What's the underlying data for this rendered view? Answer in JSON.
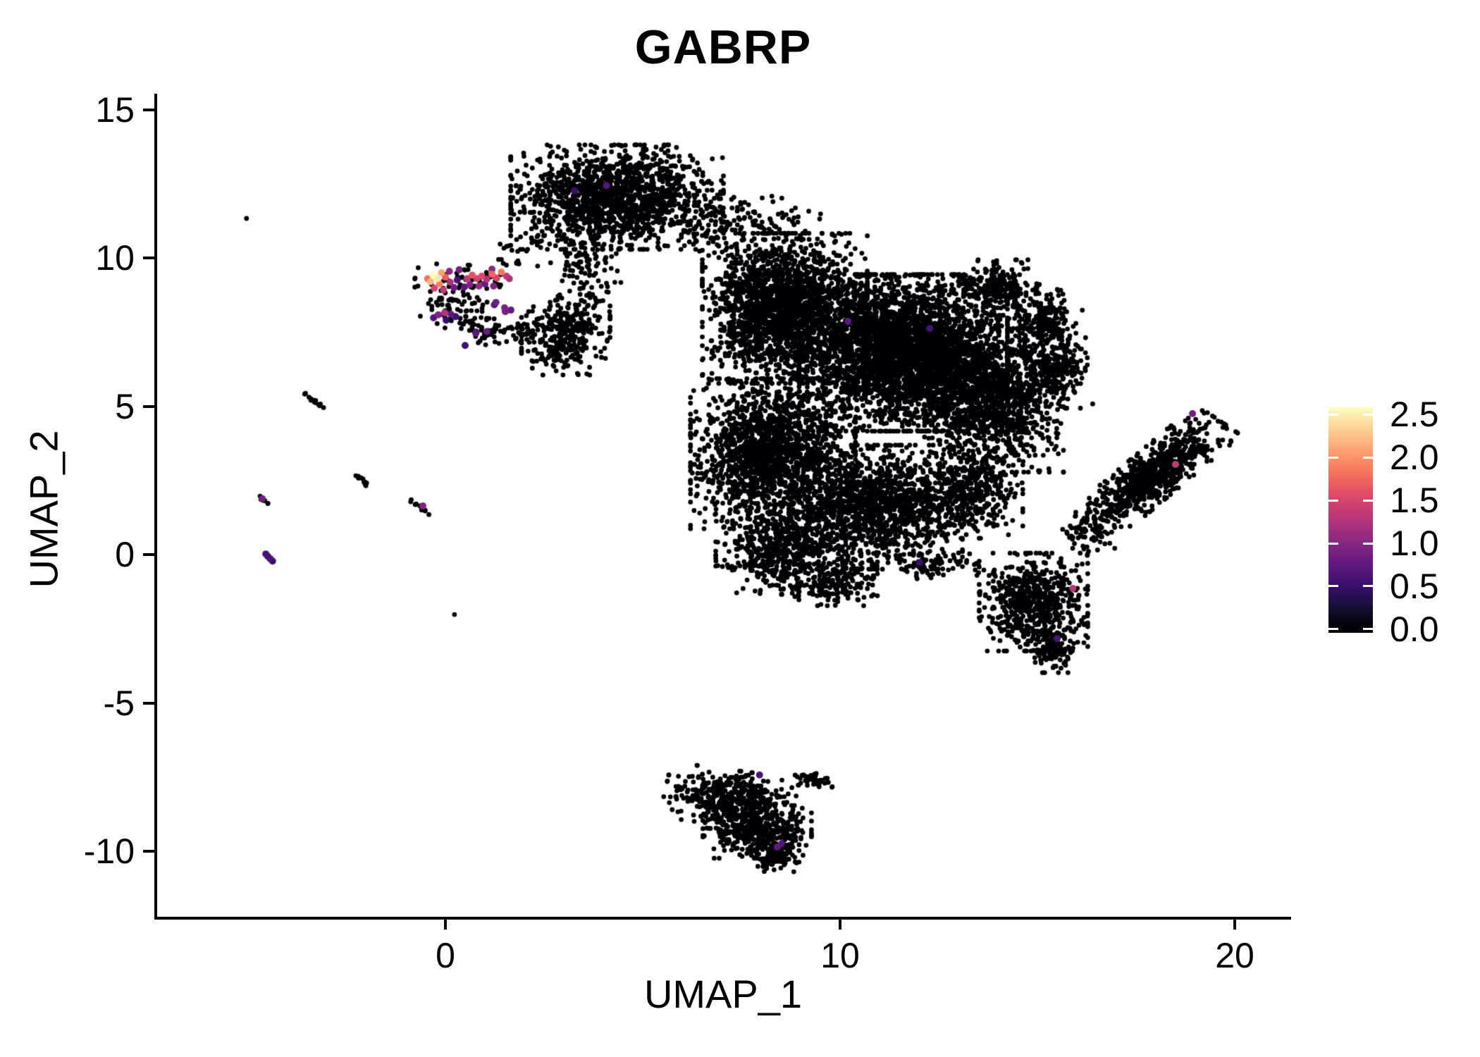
{
  "title": "GABRP",
  "chart_data": {
    "type": "scatter",
    "title": "GABRP",
    "xlabel": "UMAP_1",
    "ylabel": "UMAP_2",
    "xlim": [
      -7.32,
      21.39
    ],
    "ylim": [
      -12.26,
      15.53
    ],
    "grid": false,
    "legend_position": "right",
    "x_tick_values": [
      0,
      10,
      20
    ],
    "x_tick_labels": [
      "0",
      "10",
      "20"
    ],
    "y_tick_values": [
      15,
      10,
      5,
      0,
      -5,
      -10
    ],
    "y_tick_labels": [
      "15",
      "10",
      "5",
      "0",
      "-5",
      "-10"
    ],
    "point_color_zero": "#000004",
    "colorbar": {
      "tick_labels": [
        "2.5",
        "2.0",
        "1.5",
        "1.0",
        "0.5",
        "0.0"
      ],
      "tick_values": [
        2.5,
        2.0,
        1.5,
        1.0,
        0.5,
        0.0
      ],
      "domain": [
        0,
        2.582
      ],
      "bar_value_range": [
        -0.041,
        2.582
      ],
      "palette": "magma",
      "stops": [
        "#000004",
        "#150f34",
        "#3b0f70",
        "#641a80",
        "#8c2981",
        "#b73779",
        "#de4968",
        "#f7705c",
        "#fe9f6d",
        "#fecf92",
        "#fcfdbf"
      ]
    },
    "background_clusters": [
      {
        "name": "top-cluster",
        "cx": 4.35,
        "cy": 12.05,
        "rx": 2.45,
        "ry": 1.6,
        "rot": 0,
        "n": 1500
      },
      {
        "name": "top-cluster-tail",
        "cx": 6.9,
        "cy": 11.0,
        "rx": 0.85,
        "ry": 0.9,
        "rot": -40,
        "n": 80
      },
      {
        "name": "neck-sparse",
        "cx": 3.6,
        "cy": 9.8,
        "rx": 0.85,
        "ry": 1.3,
        "rot": 0,
        "n": 110
      },
      {
        "name": "neck-trail",
        "cx": 2.1,
        "cy": 10.6,
        "rx": 0.9,
        "ry": 0.45,
        "rot": 35,
        "n": 22
      },
      {
        "name": "islet-cluster",
        "cx": 3.05,
        "cy": 7.45,
        "rx": 1.02,
        "ry": 1.27,
        "rot": 0,
        "n": 340
      },
      {
        "name": "gabrp-band-black",
        "cx": 0.6,
        "cy": 9.25,
        "rx": 1.25,
        "ry": 0.5,
        "rot": 0,
        "n": 50
      },
      {
        "name": "gabrp-hook-a",
        "cx": 0.3,
        "cy": 8.3,
        "rx": 0.85,
        "ry": 0.6,
        "rot": 0,
        "n": 65
      },
      {
        "name": "gabrp-hook-b",
        "cx": 1.15,
        "cy": 7.55,
        "rx": 0.75,
        "ry": 0.45,
        "rot": -20,
        "n": 50
      },
      {
        "name": "gabrp-hook-c",
        "cx": 1.95,
        "cy": 7.55,
        "rx": 0.5,
        "ry": 0.35,
        "rot": 0,
        "n": 28
      },
      {
        "name": "gabrp-strays",
        "cx": 1.8,
        "cy": 9.7,
        "rx": 0.75,
        "ry": 0.75,
        "rot": 0,
        "n": 10
      },
      {
        "name": "main-upper-left",
        "cx": 8.6,
        "cy": 8.3,
        "rx": 1.9,
        "ry": 2.3,
        "rot": 0,
        "n": 2100
      },
      {
        "name": "main-core",
        "cx": 11.6,
        "cy": 6.8,
        "rx": 2.4,
        "ry": 2.4,
        "rot": 0,
        "n": 3400
      },
      {
        "name": "main-right",
        "cx": 13.9,
        "cy": 5.2,
        "rx": 1.6,
        "ry": 2.2,
        "rot": 0,
        "n": 1100
      },
      {
        "name": "main-lower-left",
        "cx": 8.3,
        "cy": 3.4,
        "rx": 1.9,
        "ry": 2.3,
        "rot": 0,
        "n": 1700
      },
      {
        "name": "main-lower-mid",
        "cx": 10.9,
        "cy": 1.6,
        "rx": 2.0,
        "ry": 1.9,
        "rot": 0,
        "n": 1300
      },
      {
        "name": "main-bottom-a",
        "cx": 8.5,
        "cy": 0.2,
        "rx": 1.5,
        "ry": 1.4,
        "rot": 0,
        "n": 550
      },
      {
        "name": "main-bottom-b",
        "cx": 9.9,
        "cy": -0.9,
        "rx": 0.95,
        "ry": 0.75,
        "rot": 0,
        "n": 170
      },
      {
        "name": "main-connect-right",
        "cx": 13.2,
        "cy": 2.2,
        "rx": 1.3,
        "ry": 1.5,
        "rot": 0,
        "n": 450
      },
      {
        "name": "arm-a",
        "cx": 14.0,
        "cy": 9.0,
        "rx": 0.9,
        "ry": 0.85,
        "rot": 0,
        "n": 240
      },
      {
        "name": "arm-b",
        "cx": 15.1,
        "cy": 7.8,
        "rx": 0.75,
        "ry": 1.1,
        "rot": -20,
        "n": 260
      },
      {
        "name": "arm-c",
        "cx": 15.55,
        "cy": 6.2,
        "rx": 0.65,
        "ry": 1.15,
        "rot": 0,
        "n": 240
      },
      {
        "name": "bridge-top",
        "cx": 8.0,
        "cy": 11.3,
        "rx": 1.3,
        "ry": 0.75,
        "rot": -15,
        "n": 70
      },
      {
        "name": "se-lobe",
        "cx": 14.9,
        "cy": -1.6,
        "rx": 1.25,
        "ry": 1.5,
        "rot": 0,
        "n": 650
      },
      {
        "name": "se-tail",
        "cx": 15.35,
        "cy": -3.1,
        "rx": 0.5,
        "ry": 0.8,
        "rot": 0,
        "n": 130
      },
      {
        "name": "se-bridge",
        "cx": 12.3,
        "cy": -0.4,
        "rx": 1.1,
        "ry": 0.45,
        "rot": 0,
        "n": 60
      },
      {
        "name": "blade-cluster",
        "cx": 17.9,
        "cy": 2.65,
        "rx": 2.3,
        "ry": 0.7,
        "rot": 48,
        "n": 800
      },
      {
        "name": "blade-root",
        "cx": 16.3,
        "cy": 0.7,
        "rx": 0.6,
        "ry": 0.7,
        "rot": 0,
        "n": 60
      },
      {
        "name": "bottom-cluster-a",
        "cx": 7.2,
        "cy": -8.2,
        "rx": 1.5,
        "ry": 0.85,
        "rot": -10,
        "n": 430
      },
      {
        "name": "bottom-cluster-b",
        "cx": 7.9,
        "cy": -9.3,
        "rx": 1.25,
        "ry": 0.85,
        "rot": 0,
        "n": 370
      },
      {
        "name": "bottom-cluster-tip",
        "cx": 8.3,
        "cy": -10.2,
        "rx": 0.6,
        "ry": 0.45,
        "rot": 0,
        "n": 110
      },
      {
        "name": "bottom-cluster-tail",
        "cx": 9.3,
        "cy": -7.6,
        "rx": 0.5,
        "ry": 0.28,
        "rot": -25,
        "n": 45
      },
      {
        "name": "debris-streak-1",
        "cx": -3.32,
        "cy": 5.17,
        "rx": 0.36,
        "ry": 0.05,
        "rot": -49,
        "n": 14
      },
      {
        "name": "debris-streak-2",
        "cx": -2.1,
        "cy": 2.5,
        "rx": 0.32,
        "ry": 0.07,
        "rot": -45,
        "n": 12
      },
      {
        "name": "debris-streak-3",
        "cx": -4.62,
        "cy": 1.86,
        "rx": 0.26,
        "ry": 0.05,
        "rot": -50,
        "n": 9
      },
      {
        "name": "debris-streak-4",
        "cx": -0.63,
        "cy": 1.6,
        "rx": 0.38,
        "ry": 0.06,
        "rot": -45,
        "n": 12
      }
    ],
    "singletons": [
      [
        -5.04,
        11.33
      ],
      [
        0.23,
        -2.02
      ],
      [
        -0.88,
        1.78
      ],
      [
        16.4,
        5.08
      ]
    ],
    "expressing_cells": [
      [
        -0.32,
        9.42,
        2.6
      ],
      [
        -0.2,
        9.3,
        2.45
      ],
      [
        -0.1,
        9.5,
        2.1
      ],
      [
        -0.38,
        9.2,
        2.2
      ],
      [
        -0.15,
        9.12,
        1.9
      ],
      [
        0.0,
        9.35,
        1.7
      ],
      [
        -0.28,
        8.98,
        1.5
      ],
      [
        -0.05,
        8.92,
        1.35
      ],
      [
        0.12,
        9.18,
        1.2
      ],
      [
        0.1,
        9.55,
        1.0
      ],
      [
        -0.45,
        9.3,
        1.8
      ],
      [
        0.22,
        9.0,
        0.85
      ],
      [
        0.3,
        9.25,
        0.6
      ],
      [
        0.55,
        9.3,
        1.35
      ],
      [
        0.68,
        9.42,
        1.6
      ],
      [
        0.8,
        9.3,
        1.45
      ],
      [
        0.92,
        9.38,
        1.55
      ],
      [
        1.05,
        9.28,
        1.25
      ],
      [
        1.18,
        9.45,
        1.75
      ],
      [
        1.3,
        9.32,
        1.5
      ],
      [
        1.42,
        9.52,
        1.85
      ],
      [
        1.55,
        9.38,
        1.3
      ],
      [
        0.62,
        9.1,
        0.95
      ],
      [
        0.85,
        9.05,
        1.05
      ],
      [
        1.0,
        9.12,
        0.8
      ],
      [
        1.22,
        9.05,
        0.95
      ],
      [
        0.48,
        9.02,
        0.7
      ],
      [
        1.62,
        9.3,
        1.2
      ],
      [
        0.35,
        9.6,
        0.9
      ],
      [
        1.18,
        9.62,
        1.0
      ],
      [
        -0.18,
        8.08,
        0.95
      ],
      [
        -0.02,
        8.15,
        1.25
      ],
      [
        0.14,
        8.1,
        0.75
      ],
      [
        0.26,
        8.02,
        0.55
      ],
      [
        -0.3,
        7.98,
        0.7
      ],
      [
        0.02,
        7.9,
        0.5
      ],
      [
        1.5,
        8.32,
        0.9
      ],
      [
        1.66,
        8.24,
        0.75
      ],
      [
        1.28,
        8.5,
        0.85
      ],
      [
        1.05,
        7.52,
        0.8
      ],
      [
        0.78,
        7.5,
        0.6
      ],
      [
        1.24,
        8.42,
        0.7
      ],
      [
        1.52,
        8.2,
        0.45
      ],
      [
        0.5,
        7.05,
        0.55
      ],
      [
        1.52,
        8.19,
        0.9
      ],
      [
        0.77,
        7.46,
        0.7
      ],
      [
        3.27,
        12.26,
        0.5
      ],
      [
        4.08,
        12.44,
        0.7
      ],
      [
        10.2,
        7.86,
        0.7
      ],
      [
        12.27,
        7.62,
        0.6
      ],
      [
        12.02,
        -0.27,
        0.5
      ],
      [
        15.9,
        -1.14,
        1.3
      ],
      [
        15.5,
        -2.83,
        0.6
      ],
      [
        18.93,
        4.75,
        0.85
      ],
      [
        18.5,
        3.04,
        1.35
      ],
      [
        7.96,
        -7.43,
        0.6
      ],
      [
        8.41,
        -9.86,
        0.75
      ],
      [
        8.52,
        -9.74,
        0.65
      ],
      [
        -4.64,
        1.88,
        0.85
      ],
      [
        -0.57,
        1.64,
        0.95
      ],
      [
        -4.55,
        0.02,
        0.6
      ],
      [
        -4.5,
        -0.06,
        0.55
      ],
      [
        -4.44,
        -0.14,
        0.6
      ],
      [
        -4.38,
        -0.22,
        0.5
      ]
    ]
  }
}
